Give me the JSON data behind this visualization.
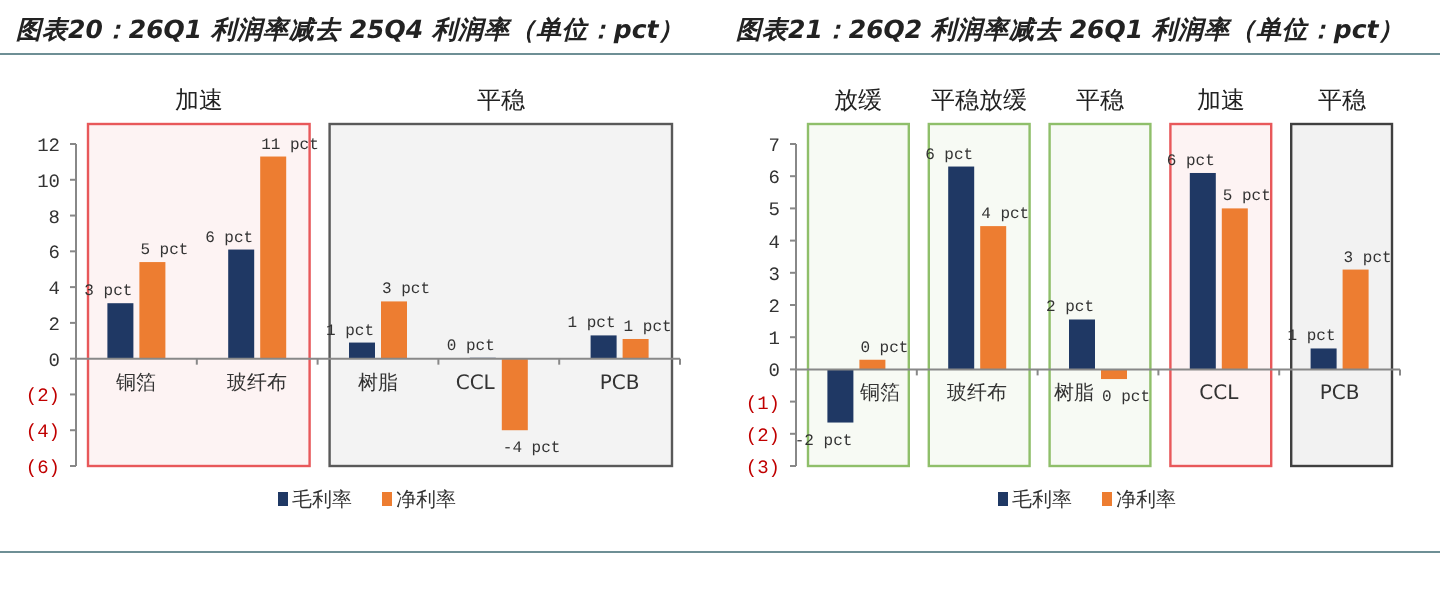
{
  "chart_data": [
    {
      "type": "bar",
      "title": "图表20：26Q1 利润率减去 25Q4 利润率（单位：pct）",
      "categories": [
        "铜箔",
        "玻纤布",
        "树脂",
        "CCL",
        "PCB"
      ],
      "series": [
        {
          "name": "毛利率",
          "color": "#1f3864",
          "values": [
            3.1,
            6.1,
            0.9,
            0.05,
            1.3
          ],
          "value_labels": [
            "3 pct",
            "6 pct",
            "1 pct",
            "0 pct",
            "1 pct"
          ]
        },
        {
          "name": "净利率",
          "color": "#ed7d31",
          "values": [
            5.4,
            11.3,
            3.2,
            -4.0,
            1.1
          ],
          "value_labels": [
            "5 pct",
            "11 pct",
            "3 pct",
            "-4 pct",
            "1 pct"
          ]
        }
      ],
      "ylim": [
        -6,
        12
      ],
      "yticks": [
        {
          "value": -6,
          "label": "(6)"
        },
        {
          "value": -4,
          "label": "(4)"
        },
        {
          "value": -2,
          "label": "(2)"
        },
        0,
        2,
        4,
        6,
        8,
        10,
        12
      ],
      "bands": [
        {
          "axis": "x",
          "from": "铜箔",
          "to": "玻纤布",
          "label": "加速",
          "color": "#e8585a"
        },
        {
          "axis": "x",
          "from": "树脂",
          "to": "PCB",
          "label": "平稳",
          "color": "#595959"
        }
      ],
      "legend": "bottom",
      "grid": false
    },
    {
      "type": "bar",
      "title": "图表21：26Q2 利润率减去 26Q1 利润率（单位：pct）",
      "categories": [
        "铜箔",
        "玻纤布",
        "树脂",
        "CCL",
        "PCB"
      ],
      "series": [
        {
          "name": "毛利率",
          "color": "#1f3864",
          "values": [
            -1.65,
            6.3,
            1.55,
            6.1,
            0.65
          ],
          "value_labels": [
            "-2 pct",
            "6 pct",
            "2 pct",
            "6 pct",
            "1 pct"
          ]
        },
        {
          "name": "净利率",
          "color": "#ed7d31",
          "values": [
            0.3,
            4.45,
            -0.3,
            5.0,
            3.1
          ],
          "value_labels": [
            "0 pct",
            "4 pct",
            "0 pct",
            "5 pct",
            "3 pct"
          ]
        }
      ],
      "ylim": [
        -3,
        7
      ],
      "yticks": [
        {
          "value": -3,
          "label": "(3)"
        },
        {
          "value": -2,
          "label": "(2)"
        },
        {
          "value": -1,
          "label": "(1)"
        },
        0,
        1,
        2,
        3,
        4,
        5,
        6,
        7
      ],
      "bands": [
        {
          "axis": "x",
          "from": "铜箔",
          "to": "铜箔",
          "label": "放缓",
          "color": "#8fbf6a"
        },
        {
          "axis": "x",
          "from": "玻纤布",
          "to": "玻纤布",
          "label": "平稳放缓",
          "color": "#8fbf6a"
        },
        {
          "axis": "x",
          "from": "树脂",
          "to": "树脂",
          "label": "平稳",
          "color": "#8fbf6a"
        },
        {
          "axis": "x",
          "from": "CCL",
          "to": "CCL",
          "label": "加速",
          "color": "#e8585a"
        },
        {
          "axis": "x",
          "from": "PCB",
          "to": "PCB",
          "label": "平稳",
          "color": "#404040"
        }
      ],
      "legend": "bottom",
      "grid": false
    }
  ]
}
